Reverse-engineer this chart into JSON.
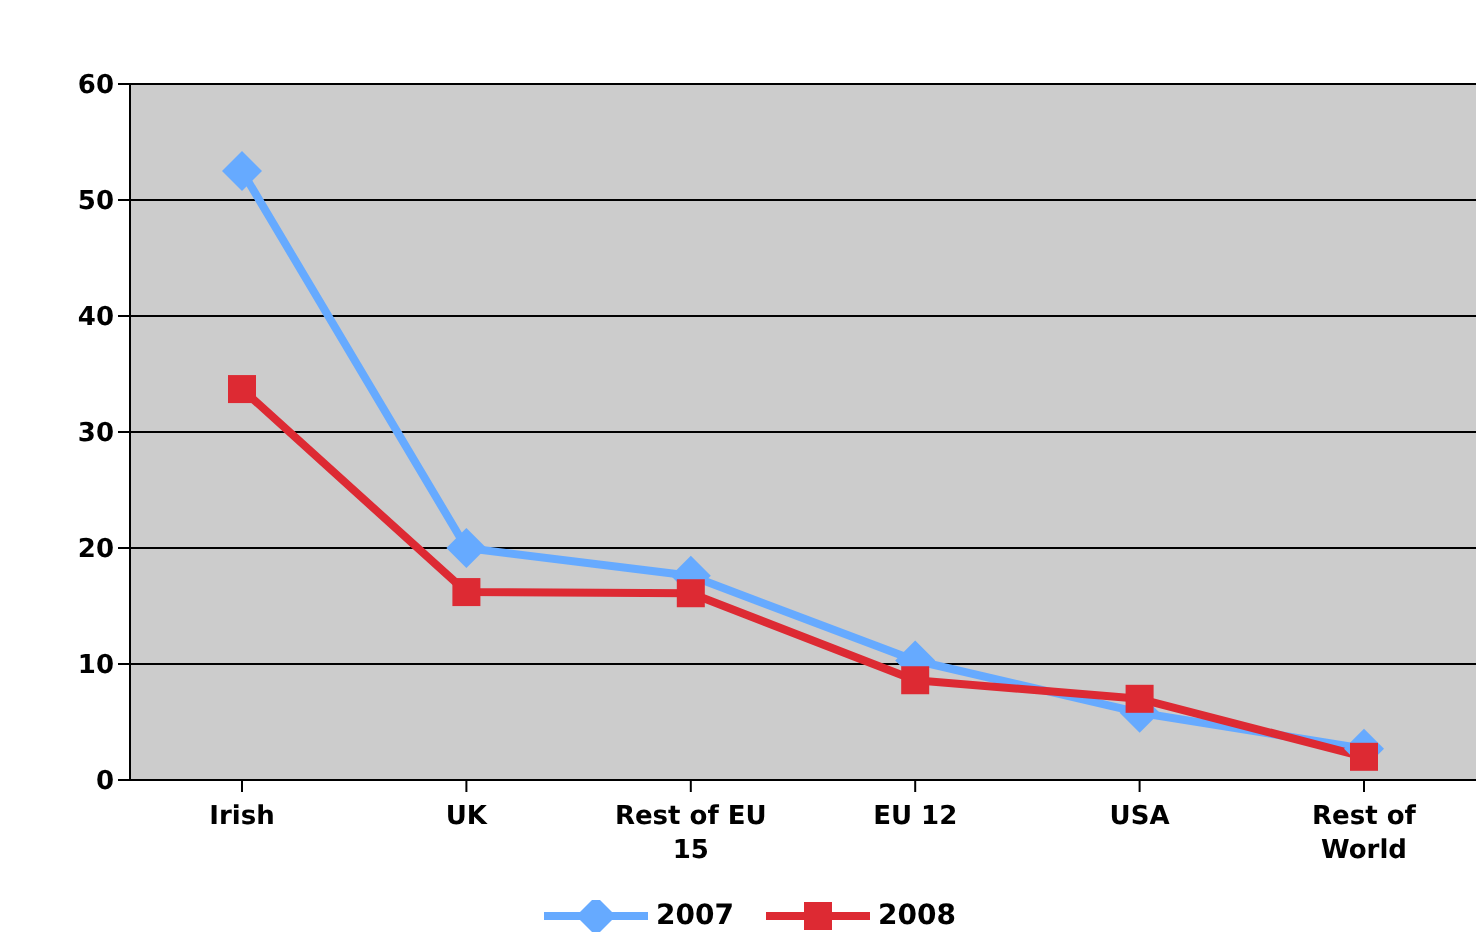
{
  "chart_data": {
    "type": "line",
    "categories": [
      "Irish",
      "UK",
      "Rest of EU 15",
      "EU 12",
      "USA",
      "Rest of World"
    ],
    "series": [
      {
        "name": "2007",
        "color": "#66aaff",
        "marker": "diamond",
        "values": [
          52.5,
          20,
          17.6,
          10.3,
          5.8,
          2.7
        ]
      },
      {
        "name": "2008",
        "color": "#dd2a33",
        "marker": "square",
        "values": [
          33.7,
          16.2,
          16.1,
          8.6,
          7,
          2
        ]
      }
    ],
    "ylim": [
      0,
      60
    ],
    "yticks": [
      0,
      10,
      20,
      30,
      40,
      50,
      60
    ],
    "grid": "y",
    "legend": "bottom"
  }
}
